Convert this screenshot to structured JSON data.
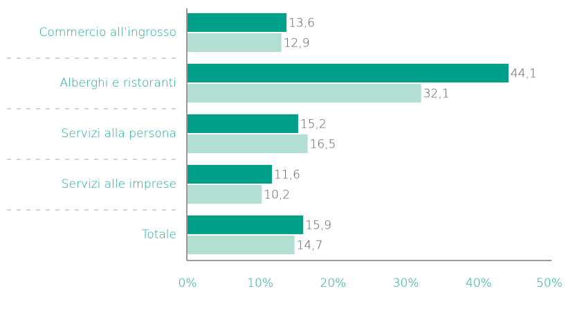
{
  "chart_data": {
    "type": "hbar",
    "categories": [
      "Commercio all’ingrosso",
      "Alberghi e ristoranti",
      "Servizi alla persona",
      "Servizi alle imprese",
      "Totale"
    ],
    "series": [
      {
        "color": "#00a08a",
        "values": [
          13.6,
          44.1,
          15.2,
          11.6,
          15.9
        ],
        "value_labels": [
          "13,6",
          "44,1",
          "15,2",
          "11,6",
          "15,9"
        ]
      },
      {
        "color": "#b3dfd3",
        "values": [
          12.9,
          32.1,
          16.5,
          10.2,
          14.7
        ],
        "value_labels": [
          "12,9",
          "32,1",
          "16,5",
          "10,2",
          "14,7"
        ]
      }
    ],
    "xlim": [
      0,
      50
    ],
    "xticks": [
      {
        "value": 0,
        "label": "0%"
      },
      {
        "value": 10,
        "label": "10%"
      },
      {
        "value": 20,
        "label": "20%"
      },
      {
        "value": 30,
        "label": "30%"
      },
      {
        "value": 40,
        "label": "40%"
      },
      {
        "value": 50,
        "label": "50%"
      }
    ]
  }
}
